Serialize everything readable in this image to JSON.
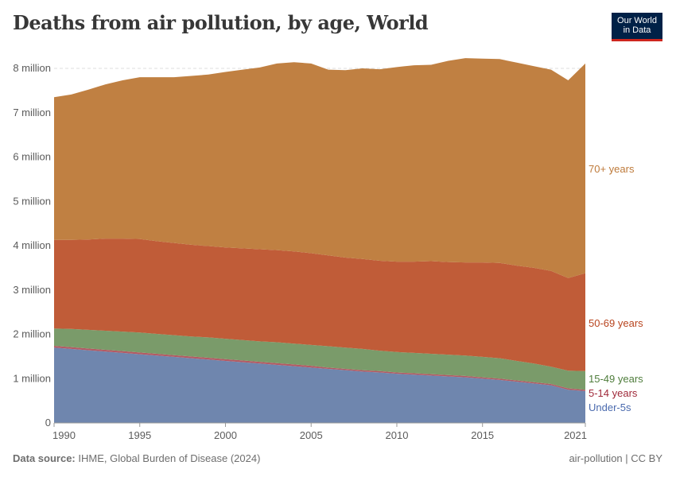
{
  "title": "Deaths from air pollution, by age, World",
  "logo": {
    "line1": "Our World",
    "line2": "in Data"
  },
  "footer": {
    "source_label": "Data source:",
    "source": "IHME, Global Burden of Disease (2024)",
    "right": "air-pollution | CC BY"
  },
  "chart_data": {
    "type": "area",
    "stacked": true,
    "title": "Deaths from air pollution, by age, World",
    "x": [
      1990,
      1991,
      1992,
      1993,
      1994,
      1995,
      1996,
      1997,
      1998,
      1999,
      2000,
      2001,
      2002,
      2003,
      2004,
      2005,
      2006,
      2007,
      2008,
      2009,
      2010,
      2011,
      2012,
      2013,
      2014,
      2015,
      2016,
      2017,
      2018,
      2019,
      2020,
      2021
    ],
    "xticks": [
      "1990",
      "1995",
      "2000",
      "2005",
      "2010",
      "2015",
      "2021"
    ],
    "yticks": [
      "0",
      "1 million",
      "2 million",
      "3 million",
      "4 million",
      "5 million",
      "6 million",
      "7 million",
      "8 million"
    ],
    "ylim": [
      0,
      8000000
    ],
    "grid": "horizontal dashed",
    "legend": "right (inline labels)",
    "series": [
      {
        "name": "Under-5s",
        "color": "#6f86ae",
        "label_color": "#4a6aae",
        "values": [
          1700000,
          1670000,
          1640000,
          1610000,
          1580000,
          1550000,
          1520000,
          1490000,
          1460000,
          1430000,
          1400000,
          1370000,
          1340000,
          1310000,
          1280000,
          1250000,
          1220000,
          1190000,
          1160000,
          1140000,
          1110000,
          1090000,
          1070000,
          1050000,
          1030000,
          1000000,
          970000,
          930000,
          890000,
          850000,
          750000,
          720000
        ]
      },
      {
        "name": "5-14 years",
        "color": "#b35a64",
        "label_color": "#a02a3a",
        "values": [
          40000,
          40000,
          40000,
          40000,
          40000,
          40000,
          40000,
          40000,
          40000,
          40000,
          40000,
          40000,
          40000,
          40000,
          40000,
          40000,
          30000,
          30000,
          30000,
          30000,
          30000,
          30000,
          30000,
          30000,
          30000,
          30000,
          30000,
          30000,
          30000,
          30000,
          30000,
          30000
        ]
      },
      {
        "name": "15-49 years",
        "color": "#7a9b6a",
        "label_color": "#4f7d3c",
        "values": [
          390000,
          410000,
          420000,
          430000,
          440000,
          450000,
          450000,
          450000,
          450000,
          460000,
          460000,
          460000,
          460000,
          470000,
          470000,
          470000,
          480000,
          480000,
          480000,
          460000,
          460000,
          460000,
          460000,
          460000,
          460000,
          460000,
          460000,
          440000,
          420000,
          390000,
          400000,
          420000
        ]
      },
      {
        "name": "50-69 years",
        "color": "#c05c38",
        "label_color": "#b8441e",
        "values": [
          2000000,
          2010000,
          2040000,
          2080000,
          2100000,
          2110000,
          2090000,
          2080000,
          2070000,
          2060000,
          2060000,
          2070000,
          2080000,
          2080000,
          2080000,
          2070000,
          2050000,
          2030000,
          2030000,
          2030000,
          2040000,
          2060000,
          2090000,
          2090000,
          2100000,
          2130000,
          2150000,
          2150000,
          2160000,
          2160000,
          2090000,
          2210000
        ]
      },
      {
        "name": "70+ years",
        "color": "#c08042",
        "label_color": "#be7a3a",
        "values": [
          3220000,
          3280000,
          3380000,
          3480000,
          3570000,
          3650000,
          3700000,
          3740000,
          3810000,
          3870000,
          3960000,
          4030000,
          4100000,
          4210000,
          4270000,
          4280000,
          4190000,
          4230000,
          4300000,
          4320000,
          4390000,
          4430000,
          4430000,
          4540000,
          4610000,
          4600000,
          4600000,
          4580000,
          4550000,
          4540000,
          4460000,
          4730000
        ]
      }
    ]
  }
}
